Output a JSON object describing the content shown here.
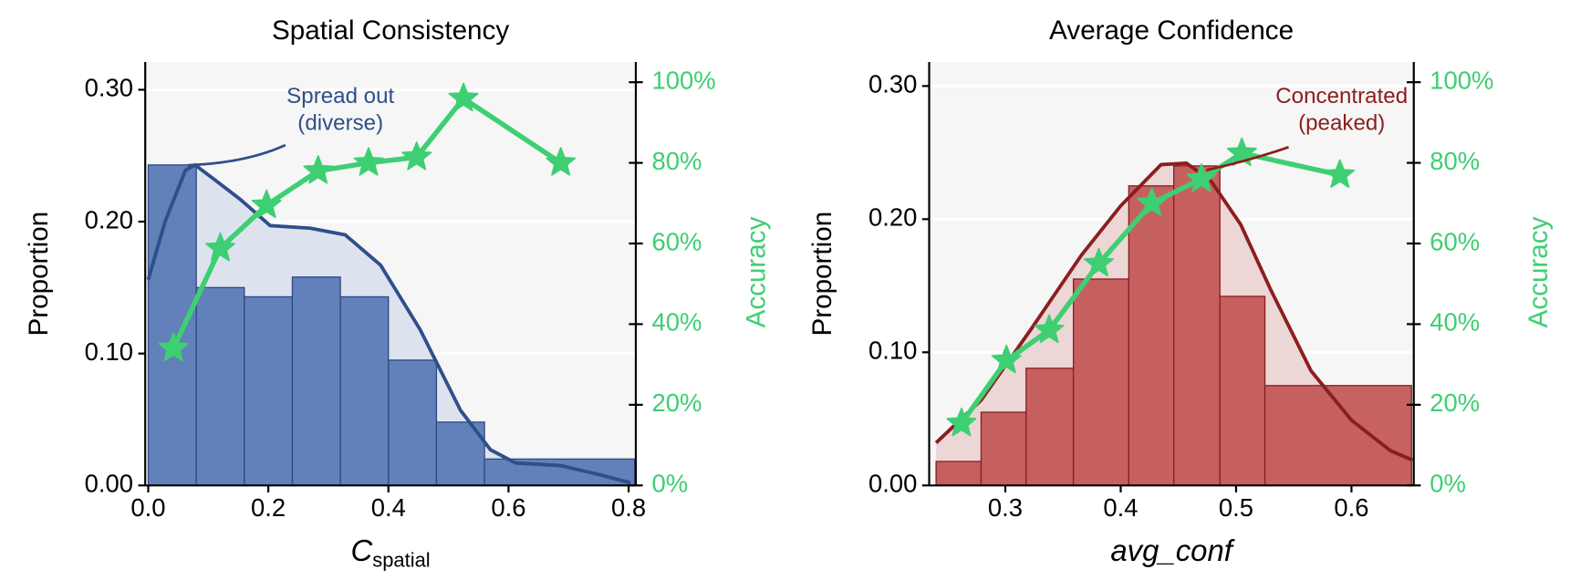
{
  "chart_data": [
    {
      "type": "histogram",
      "title": "Spatial Consistency",
      "xlabel": "C",
      "xlabel_sub": "spatial",
      "ylabel": "Proportion",
      "y2label": "Accuracy",
      "bins": [
        0,
        0.08,
        0.16,
        0.24,
        0.32,
        0.4,
        0.48,
        0.56,
        0.81
      ],
      "values": [
        0.243,
        0.15,
        0.143,
        0.158,
        0.143,
        0.095,
        0.048,
        0.02
      ],
      "color": "#5b7ab5",
      "edgecolor": "#2d4a85",
      "kde": {
        "x": [
          0,
          0.028,
          0.062,
          0.078,
          0.11,
          0.153,
          0.203,
          0.27,
          0.328,
          0.387,
          0.453,
          0.52,
          0.57,
          0.612,
          0.687,
          0.753,
          0.803
        ],
        "values": [
          0.156,
          0.2,
          0.239,
          0.243,
          0.232,
          0.217,
          0.197,
          0.195,
          0.19,
          0.167,
          0.118,
          0.057,
          0.027,
          0.017,
          0.015,
          0.008,
          0.002
        ],
        "color": "#2f4f8a",
        "fill": "#dde3ee"
      },
      "lines": [
        {
          "x": [
            0.042,
            0.12,
            0.197,
            0.283,
            0.367,
            0.447,
            0.525,
            0.687
          ],
          "values": [
            34,
            58.8,
            69.5,
            78,
            80,
            81.4,
            96,
            80
          ],
          "color": "#3ecf72",
          "axis": "y2",
          "marker": "star"
        }
      ],
      "annotation": [
        "Spread out",
        "(diverse)"
      ],
      "annotation_color": "#2f4f8a",
      "xlim": [
        -0.005,
        0.812
      ],
      "ylim": [
        0,
        0.321
      ],
      "y2lim": [
        0,
        105
      ],
      "xticks": [
        {
          "value": 0,
          "label": "0.0"
        },
        0.2,
        0.4,
        0.6,
        0.8
      ],
      "yticks": [
        {
          "value": 0,
          "label": "0.00"
        },
        {
          "value": 0.1,
          "label": "0.10"
        },
        {
          "value": 0.2,
          "label": "0.20"
        },
        {
          "value": 0.3,
          "label": "0.30"
        }
      ],
      "y2ticks": [
        {
          "value": 0,
          "label": "0%"
        },
        {
          "value": 20,
          "label": "20%"
        },
        {
          "value": 40,
          "label": "40%"
        },
        {
          "value": 60,
          "label": "60%"
        },
        {
          "value": 80,
          "label": "80%"
        },
        {
          "value": 100,
          "label": "100%"
        }
      ],
      "grid": true
    },
    {
      "type": "histogram",
      "title": "Average Confidence",
      "xlabel": "avg_conf",
      "ylabel": "Proportion",
      "y2label": "Accuracy",
      "bins": [
        0.24,
        0.279,
        0.318,
        0.359,
        0.407,
        0.446,
        0.486,
        0.525,
        0.652
      ],
      "values": [
        0.018,
        0.055,
        0.088,
        0.155,
        0.225,
        0.24,
        0.142,
        0.075
      ],
      "color": "#c45a5a",
      "edgecolor": "#8b1e1e",
      "kde": {
        "x": [
          0.24,
          0.279,
          0.322,
          0.366,
          0.4,
          0.435,
          0.457,
          0.478,
          0.504,
          0.53,
          0.565,
          0.6,
          0.634,
          0.653
        ],
        "values": [
          0.032,
          0.064,
          0.117,
          0.173,
          0.21,
          0.241,
          0.242,
          0.229,
          0.196,
          0.147,
          0.086,
          0.049,
          0.026,
          0.019
        ],
        "color": "#8b1e1e",
        "fill": "#ecd6d6"
      },
      "lines": [
        {
          "x": [
            0.262,
            0.301,
            0.338,
            0.381,
            0.427,
            0.47,
            0.505,
            0.59
          ],
          "values": [
            15.4,
            31,
            38.5,
            55,
            70,
            76,
            82.4,
            77
          ],
          "color": "#3ecf72",
          "axis": "y2",
          "marker": "star"
        }
      ],
      "annotation": [
        "Concentrated",
        "(peaked)"
      ],
      "annotation_color": "#8b1e1e",
      "xlim": [
        0.234,
        0.654
      ],
      "ylim": [
        0,
        0.318
      ],
      "y2lim": [
        0,
        105
      ],
      "xticks": [
        0.3,
        0.4,
        0.5,
        0.6
      ],
      "yticks": [
        {
          "value": 0,
          "label": "0.00"
        },
        {
          "value": 0.1,
          "label": "0.10"
        },
        {
          "value": 0.2,
          "label": "0.20"
        },
        {
          "value": 0.3,
          "label": "0.30"
        }
      ],
      "y2ticks": [
        {
          "value": 0,
          "label": "0%"
        },
        {
          "value": 20,
          "label": "20%"
        },
        {
          "value": 40,
          "label": "40%"
        },
        {
          "value": 60,
          "label": "60%"
        },
        {
          "value": 80,
          "label": "80%"
        },
        {
          "value": 100,
          "label": "100%"
        }
      ],
      "grid": true
    }
  ]
}
